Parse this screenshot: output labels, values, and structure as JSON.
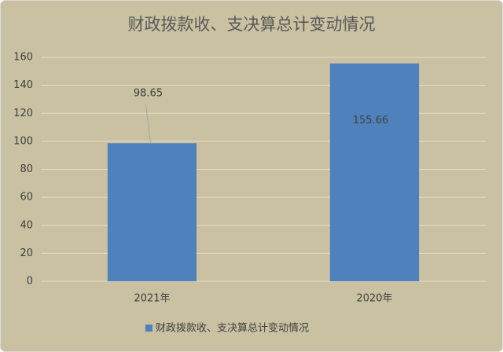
{
  "chart_data": {
    "type": "bar",
    "title": "财政拨款收、支决算总计变动情况",
    "categories": [
      "2021年",
      "2020年"
    ],
    "series": [
      {
        "name": "财政拨款收、支决算总计变动情况",
        "color": "#4f81bd",
        "values": [
          98.65,
          155.66
        ]
      }
    ],
    "ylim": [
      0,
      160
    ],
    "yticks": [
      0,
      20,
      40,
      60,
      80,
      100,
      120,
      140,
      160
    ],
    "grid": true,
    "legend": "bottom"
  }
}
